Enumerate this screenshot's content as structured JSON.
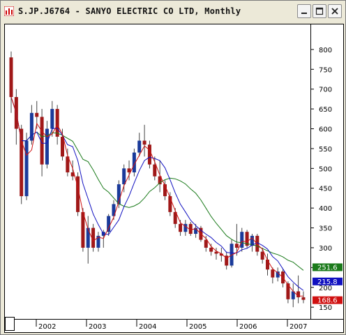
{
  "window": {
    "title": "S.JP.J6764 - SANYO ELECTRIC CO LTD, Monthly",
    "buttons": [
      "minimize",
      "maximize",
      "close"
    ]
  },
  "chart_data": {
    "type": "candlestick",
    "title": "S.JP.J6764 - SANYO ELECTRIC CO LTD, Monthly",
    "x_labels": [
      "2002",
      "2003",
      "2004",
      "2005",
      "2006",
      "2007"
    ],
    "y_ticks": [
      150,
      200,
      250,
      300,
      350,
      400,
      450,
      500,
      550,
      600,
      650,
      700,
      750,
      800
    ],
    "ylim": [
      145,
      835
    ],
    "colors": {
      "up": "#1a3a9a",
      "down": "#a01818",
      "ma_long": "#1a7a1a",
      "ma_mid": "#1010c0",
      "ma_short": "#d01010"
    },
    "last_values": [
      {
        "label": "251.6",
        "value": 251.6,
        "color": "#1a7a1a"
      },
      {
        "label": "215.8",
        "value": 215.8,
        "color": "#1010c0"
      },
      {
        "label": "168.6",
        "value": 168.6,
        "color": "#d01010"
      }
    ],
    "candles": [
      {
        "o": 780,
        "h": 795,
        "l": 640,
        "c": 680
      },
      {
        "o": 680,
        "h": 700,
        "l": 560,
        "c": 600
      },
      {
        "o": 600,
        "h": 610,
        "l": 410,
        "c": 430
      },
      {
        "o": 430,
        "h": 590,
        "l": 420,
        "c": 570
      },
      {
        "o": 570,
        "h": 660,
        "l": 560,
        "c": 640
      },
      {
        "o": 640,
        "h": 670,
        "l": 600,
        "c": 630
      },
      {
        "o": 630,
        "h": 650,
        "l": 480,
        "c": 510
      },
      {
        "o": 510,
        "h": 620,
        "l": 500,
        "c": 600
      },
      {
        "o": 600,
        "h": 670,
        "l": 580,
        "c": 650
      },
      {
        "o": 650,
        "h": 660,
        "l": 560,
        "c": 580
      },
      {
        "o": 580,
        "h": 600,
        "l": 520,
        "c": 530
      },
      {
        "o": 530,
        "h": 550,
        "l": 480,
        "c": 490
      },
      {
        "o": 490,
        "h": 520,
        "l": 470,
        "c": 480
      },
      {
        "o": 480,
        "h": 490,
        "l": 380,
        "c": 390
      },
      {
        "o": 390,
        "h": 400,
        "l": 290,
        "c": 300
      },
      {
        "o": 300,
        "h": 380,
        "l": 260,
        "c": 350
      },
      {
        "o": 350,
        "h": 360,
        "l": 290,
        "c": 300
      },
      {
        "o": 300,
        "h": 340,
        "l": 290,
        "c": 330
      },
      {
        "o": 330,
        "h": 345,
        "l": 300,
        "c": 340
      },
      {
        "o": 340,
        "h": 385,
        "l": 330,
        "c": 380
      },
      {
        "o": 380,
        "h": 420,
        "l": 370,
        "c": 410
      },
      {
        "o": 410,
        "h": 470,
        "l": 400,
        "c": 460
      },
      {
        "o": 460,
        "h": 510,
        "l": 440,
        "c": 500
      },
      {
        "o": 500,
        "h": 520,
        "l": 470,
        "c": 490
      },
      {
        "o": 490,
        "h": 550,
        "l": 480,
        "c": 540
      },
      {
        "o": 540,
        "h": 590,
        "l": 530,
        "c": 570
      },
      {
        "o": 570,
        "h": 610,
        "l": 530,
        "c": 560
      },
      {
        "o": 560,
        "h": 570,
        "l": 500,
        "c": 510
      },
      {
        "o": 510,
        "h": 530,
        "l": 470,
        "c": 480
      },
      {
        "o": 480,
        "h": 520,
        "l": 440,
        "c": 460
      },
      {
        "o": 460,
        "h": 470,
        "l": 420,
        "c": 430
      },
      {
        "o": 430,
        "h": 440,
        "l": 380,
        "c": 390
      },
      {
        "o": 390,
        "h": 400,
        "l": 350,
        "c": 360
      },
      {
        "o": 360,
        "h": 370,
        "l": 330,
        "c": 340
      },
      {
        "o": 340,
        "h": 370,
        "l": 330,
        "c": 360
      },
      {
        "o": 360,
        "h": 365,
        "l": 330,
        "c": 335
      },
      {
        "o": 335,
        "h": 360,
        "l": 325,
        "c": 350
      },
      {
        "o": 350,
        "h": 355,
        "l": 315,
        "c": 320
      },
      {
        "o": 320,
        "h": 330,
        "l": 290,
        "c": 300
      },
      {
        "o": 300,
        "h": 310,
        "l": 280,
        "c": 290
      },
      {
        "o": 290,
        "h": 300,
        "l": 270,
        "c": 285
      },
      {
        "o": 285,
        "h": 300,
        "l": 265,
        "c": 280
      },
      {
        "o": 280,
        "h": 290,
        "l": 245,
        "c": 255
      },
      {
        "o": 255,
        "h": 320,
        "l": 250,
        "c": 310
      },
      {
        "o": 310,
        "h": 360,
        "l": 280,
        "c": 300
      },
      {
        "o": 300,
        "h": 350,
        "l": 290,
        "c": 340
      },
      {
        "o": 340,
        "h": 345,
        "l": 300,
        "c": 305
      },
      {
        "o": 305,
        "h": 335,
        "l": 290,
        "c": 330
      },
      {
        "o": 330,
        "h": 335,
        "l": 280,
        "c": 290
      },
      {
        "o": 290,
        "h": 300,
        "l": 260,
        "c": 270
      },
      {
        "o": 270,
        "h": 285,
        "l": 230,
        "c": 245
      },
      {
        "o": 245,
        "h": 250,
        "l": 210,
        "c": 225
      },
      {
        "o": 225,
        "h": 250,
        "l": 215,
        "c": 240
      },
      {
        "o": 240,
        "h": 245,
        "l": 200,
        "c": 210
      },
      {
        "o": 210,
        "h": 215,
        "l": 160,
        "c": 170
      },
      {
        "o": 170,
        "h": 210,
        "l": 150,
        "c": 190
      },
      {
        "o": 190,
        "h": 230,
        "l": 160,
        "c": 175
      },
      {
        "o": 175,
        "h": 190,
        "l": 160,
        "c": 168.6
      }
    ]
  }
}
